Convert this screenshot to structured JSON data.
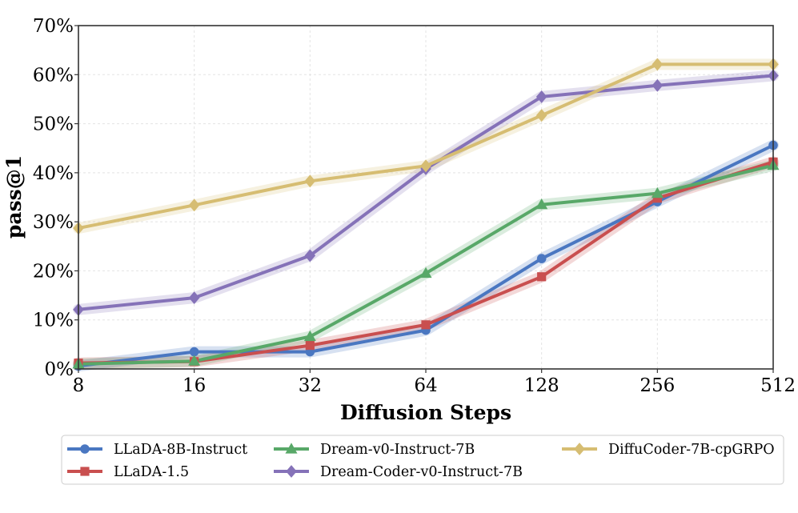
{
  "chart_data": {
    "type": "line",
    "title": "",
    "xlabel": "Diffusion Steps",
    "ylabel": "pass@1",
    "categories": [
      "8",
      "16",
      "32",
      "64",
      "128",
      "256",
      "512"
    ],
    "y_ticks": [
      "0%",
      "10%",
      "20%",
      "30%",
      "40%",
      "50%",
      "60%",
      "70%"
    ],
    "ylim": [
      0,
      70
    ],
    "grid": true,
    "legend_position": "bottom",
    "series": [
      {
        "name": "LLaDA-8B-Instruct",
        "color": "#4a77c1",
        "marker": "circle",
        "values": [
          0.6,
          3.5,
          3.5,
          7.9,
          22.5,
          34.1,
          45.6
        ]
      },
      {
        "name": "LLaDA-1.5",
        "color": "#c94f4f",
        "marker": "square",
        "values": [
          1.2,
          1.5,
          4.8,
          9.0,
          18.8,
          34.8,
          42.2
        ]
      },
      {
        "name": "Dream-v0-Instruct-7B",
        "color": "#58a868",
        "marker": "triangle",
        "values": [
          1.0,
          1.6,
          6.6,
          19.5,
          33.5,
          35.8,
          41.5
        ]
      },
      {
        "name": "Dream-Coder-v0-Instruct-7B",
        "color": "#8572b8",
        "marker": "diamond",
        "values": [
          12.1,
          14.5,
          23.1,
          40.8,
          55.5,
          57.8,
          59.8
        ]
      },
      {
        "name": "DiffuCoder-7B-cpGRPO",
        "color": "#d6bd72",
        "marker": "diamond",
        "values": [
          28.7,
          33.4,
          38.3,
          41.4,
          51.7,
          62.1,
          62.1
        ]
      }
    ]
  }
}
